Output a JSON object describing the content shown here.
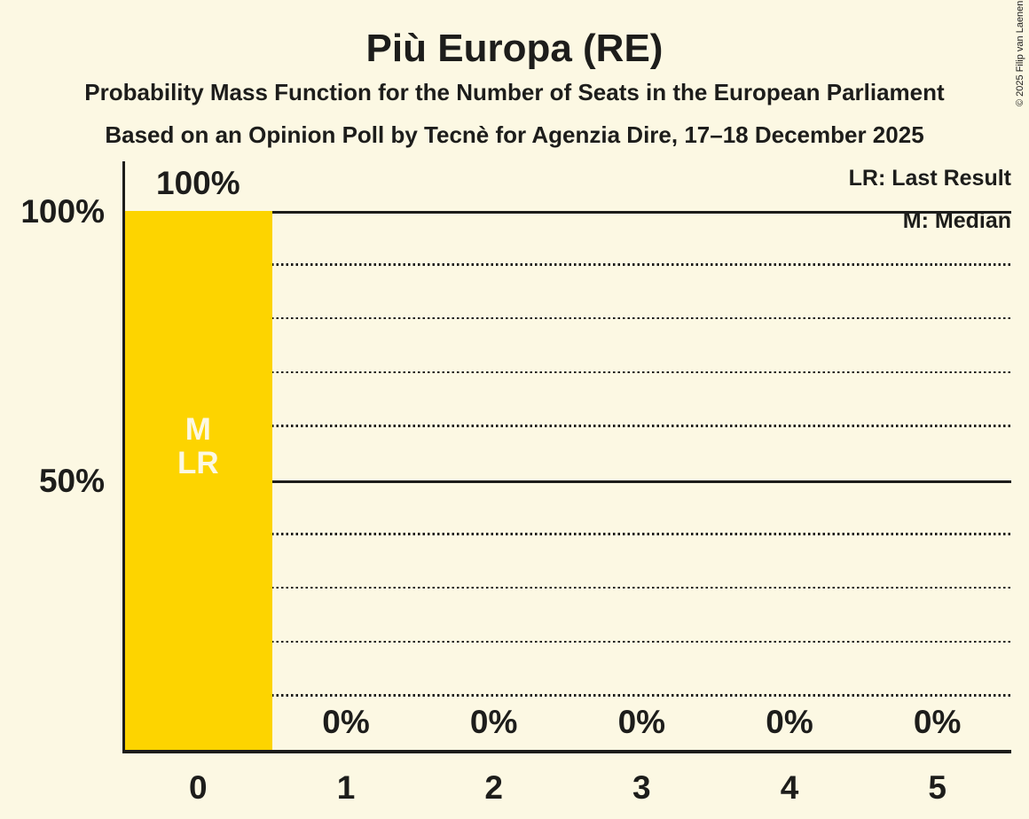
{
  "copyright": "© 2025 Filip van Laenen",
  "colors": {
    "background": "#FCF8E3",
    "bar": "#FDD400",
    "text": "#1D1D1B",
    "bar_annotation_text": "#FCF8E3"
  },
  "chart_data": {
    "type": "bar",
    "title": "Più Europa (RE)",
    "subtitle": "Probability Mass Function for the Number of Seats in the European Parliament",
    "source_line": "Based on an Opinion Poll by Tecnè for Agenzia Dire, 17–18 December 2025",
    "xlabel": "",
    "ylabel": "",
    "categories": [
      "0",
      "1",
      "2",
      "3",
      "4",
      "5"
    ],
    "values": [
      100,
      0,
      0,
      0,
      0,
      0
    ],
    "value_labels": [
      "100%",
      "0%",
      "0%",
      "0%",
      "0%",
      "0%"
    ],
    "ylim": [
      0,
      100
    ],
    "gridline_interval": 10,
    "solid_gridlines": [
      50,
      100
    ],
    "grid": "dotted horizontal lines every 10%, solid at 50% and 100%",
    "y_axis_labels": [
      {
        "value": 100,
        "label": "100%"
      },
      {
        "value": 50,
        "label": "50%"
      }
    ],
    "legend": [
      {
        "label": "LR: Last Result"
      },
      {
        "label": "M: Median"
      }
    ],
    "legend_position": "top-right",
    "annotations": [
      {
        "category": "0",
        "lines": [
          "M",
          "LR"
        ]
      }
    ]
  }
}
